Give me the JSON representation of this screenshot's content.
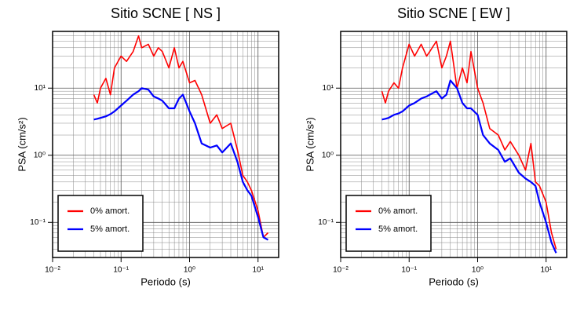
{
  "chart_data": [
    {
      "type": "line",
      "title": "Sitio SCNE [ NS ]",
      "xlabel": "Periodo (s)",
      "ylabel": "PSA (cm/s²)",
      "xscale": "log",
      "yscale": "log",
      "grid": true,
      "legend": "lower left",
      "xlim": [
        0.01,
        20
      ],
      "ylim": [
        0.03,
        70
      ],
      "xticks": [
        {
          "value": 0.01,
          "label": "10⁻²"
        },
        {
          "value": 0.1,
          "label": "10⁻¹"
        },
        {
          "value": 1,
          "label": "10⁰"
        },
        {
          "value": 10,
          "label": "10¹"
        }
      ],
      "yticks": [
        {
          "value": 0.1,
          "label": "10⁻¹"
        },
        {
          "value": 1,
          "label": "10⁰"
        },
        {
          "value": 10,
          "label": "10¹"
        }
      ],
      "x": [
        0.04,
        0.045,
        0.05,
        0.06,
        0.07,
        0.08,
        0.1,
        0.12,
        0.15,
        0.18,
        0.2,
        0.25,
        0.3,
        0.35,
        0.4,
        0.5,
        0.6,
        0.7,
        0.8,
        1.0,
        1.2,
        1.5,
        2,
        2.5,
        3,
        4,
        5,
        6,
        7,
        8,
        10,
        12,
        14
      ],
      "series": [
        {
          "name": "0% amort.",
          "color": "#ff0000",
          "values": [
            8,
            6,
            10,
            14,
            8,
            20,
            30,
            25,
            35,
            60,
            40,
            45,
            30,
            40,
            35,
            20,
            40,
            20,
            25,
            12,
            13,
            8,
            3,
            4,
            2.5,
            3,
            1.2,
            0.5,
            0.4,
            0.3,
            0.15,
            0.06,
            0.07
          ]
        },
        {
          "name": "5% amort.",
          "color": "#0000ff",
          "values": [
            3.4,
            3.5,
            3.6,
            3.8,
            4.1,
            4.5,
            5.5,
            6.5,
            8,
            9,
            10,
            9.5,
            7.5,
            7,
            6.5,
            5,
            5,
            7,
            8,
            4.5,
            3,
            1.5,
            1.3,
            1.4,
            1.1,
            1.5,
            0.8,
            0.4,
            0.3,
            0.25,
            0.12,
            0.06,
            0.055
          ]
        }
      ]
    },
    {
      "type": "line",
      "title": "Sitio SCNE [ EW ]",
      "xlabel": "Periodo (s)",
      "ylabel": "PSA (cm/s²)",
      "xscale": "log",
      "yscale": "log",
      "grid": true,
      "legend": "lower left",
      "xlim": [
        0.01,
        20
      ],
      "ylim": [
        0.03,
        70
      ],
      "xticks": [
        {
          "value": 0.01,
          "label": "10⁻²"
        },
        {
          "value": 0.1,
          "label": "10⁻¹"
        },
        {
          "value": 1,
          "label": "10⁰"
        },
        {
          "value": 10,
          "label": "10¹"
        }
      ],
      "yticks": [
        {
          "value": 0.1,
          "label": "10⁻¹"
        },
        {
          "value": 1,
          "label": "10⁰"
        },
        {
          "value": 10,
          "label": "10¹"
        }
      ],
      "x": [
        0.04,
        0.045,
        0.05,
        0.06,
        0.07,
        0.08,
        0.1,
        0.12,
        0.15,
        0.18,
        0.2,
        0.25,
        0.3,
        0.35,
        0.4,
        0.5,
        0.6,
        0.7,
        0.8,
        1.0,
        1.2,
        1.5,
        2,
        2.5,
        3,
        4,
        5,
        6,
        7,
        8,
        10,
        12,
        14
      ],
      "series": [
        {
          "name": "0% amort.",
          "color": "#ff0000",
          "values": [
            9,
            6,
            9,
            12,
            10,
            20,
            45,
            30,
            45,
            30,
            35,
            50,
            20,
            30,
            50,
            10,
            20,
            12,
            35,
            10,
            6,
            2.5,
            2,
            1.2,
            1.6,
            1,
            0.6,
            1.5,
            0.4,
            0.35,
            0.2,
            0.07,
            0.04
          ]
        },
        {
          "name": "5% amort.",
          "color": "#0000ff",
          "values": [
            3.4,
            3.5,
            3.6,
            4,
            4.2,
            4.5,
            5.5,
            6,
            7,
            7.5,
            8,
            9,
            7,
            8,
            13,
            10,
            6,
            5,
            5,
            4,
            2,
            1.5,
            1.2,
            0.8,
            0.9,
            0.55,
            0.45,
            0.4,
            0.35,
            0.2,
            0.1,
            0.05,
            0.035
          ]
        }
      ]
    }
  ]
}
